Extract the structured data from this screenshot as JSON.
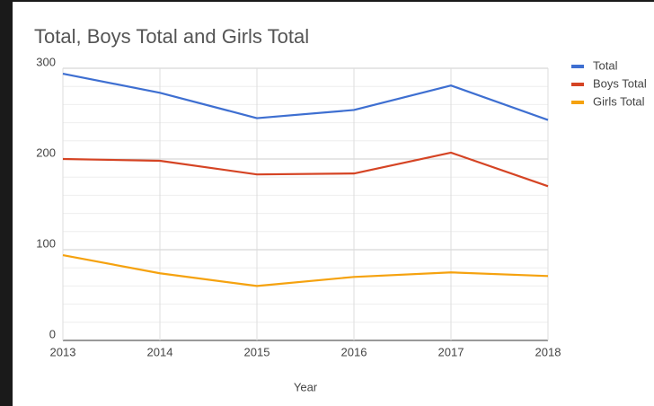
{
  "chart_data": {
    "type": "line",
    "title": "Total, Boys Total and Girls Total",
    "x_label": "Year",
    "categories": [
      "2013",
      "2014",
      "2015",
      "2016",
      "2017",
      "2018"
    ],
    "series": [
      {
        "name": "Total",
        "color": "#3e6fd1",
        "values": [
          294,
          273,
          245,
          254,
          281,
          243
        ]
      },
      {
        "name": "Boys Total",
        "color": "#d54424",
        "values": [
          200,
          198,
          183,
          184,
          207,
          170
        ]
      },
      {
        "name": "Girls Total",
        "color": "#f5a20f",
        "values": [
          94,
          74,
          60,
          70,
          75,
          71
        ]
      }
    ],
    "ylim": [
      0,
      300
    ],
    "yticks": [
      0,
      100,
      200,
      300
    ],
    "y_minor_ticks": [
      20,
      40,
      60,
      80,
      120,
      140,
      160,
      180,
      220,
      240,
      260,
      280
    ],
    "grid": true,
    "legend": "right"
  }
}
